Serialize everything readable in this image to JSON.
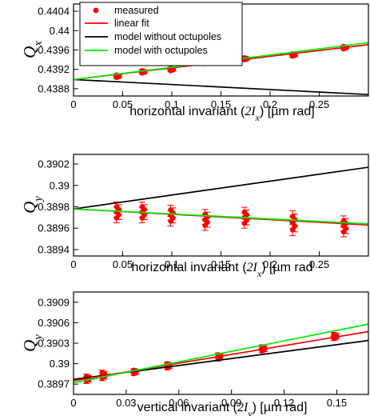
{
  "colors": {
    "measured": "#ff0000",
    "fit": "#ff0000",
    "no_oct": "#000000",
    "with_oct": "#00ee00"
  },
  "legend": {
    "measured": "measured",
    "fit": "linear fit",
    "no_oct": "model without octupoles",
    "with_oct": "model with octupoles"
  },
  "chart_data": [
    {
      "type": "scatter",
      "ylabel": "Qx",
      "xlabel": "horizontal invariant (2Ix) [µm rad]",
      "xlim": [
        0,
        0.3
      ],
      "ylim": [
        0.43865,
        0.44055
      ],
      "xticks": [
        0,
        0.05,
        0.1,
        0.15,
        0.2,
        0.25
      ],
      "xticklabels": [
        "0",
        "0.05",
        "0.1",
        "0.15",
        "0.2",
        "0.25"
      ],
      "yticks": [
        0.4388,
        0.4392,
        0.4396,
        0.44,
        0.4404
      ],
      "yticklabels": [
        "0.4388",
        "0.4392",
        "0.4396",
        "0.44",
        "0.4404"
      ],
      "measured": {
        "x": [
          0.045,
          0.071,
          0.1,
          0.135,
          0.175,
          0.224,
          0.276
        ],
        "y": [
          0.43906,
          0.43915,
          0.4392,
          0.43934,
          0.43942,
          0.4395,
          0.43965
        ],
        "err": [
          5e-05,
          5e-05,
          5e-05,
          4e-05,
          4e-05,
          5e-05,
          5e-05
        ]
      },
      "lines": [
        {
          "key": "fit",
          "x": [
            0,
            0.3
          ],
          "y": [
            0.43899,
            0.43971
          ]
        },
        {
          "key": "no_oct",
          "x": [
            0,
            0.3
          ],
          "y": [
            0.43899,
            0.43868
          ]
        },
        {
          "key": "with_oct",
          "x": [
            0,
            0.3
          ],
          "y": [
            0.43899,
            0.43975
          ]
        }
      ]
    },
    {
      "type": "scatter",
      "ylabel": "Qy",
      "xlabel": "horizontal invariant (2Ix) [µm rad",
      "xlim": [
        0,
        0.3
      ],
      "ylim": [
        0.38934,
        0.39029
      ],
      "xticks": [
        0,
        0.05,
        0.1,
        0.15,
        0.2,
        0.25
      ],
      "xticklabels": [
        "0",
        "0.05",
        "0.1",
        "0.15",
        "0.2",
        "0.25"
      ],
      "yticks": [
        0.3894,
        0.3896,
        0.3898,
        0.39,
        0.3902
      ],
      "yticklabels": [
        "0.3894",
        "0.3896",
        "0.3898",
        "0.39",
        "0.3902"
      ],
      "measured": {
        "x": [
          0.045,
          0.071,
          0.1,
          0.135,
          0.175,
          0.224,
          0.276
        ],
        "y": [
          0.38975,
          0.38975,
          0.38972,
          0.38968,
          0.3897,
          0.38965,
          0.38962
        ],
        "err": [
          0.0001,
          0.0001,
          0.0001,
          0.0001,
          0.0001,
          0.00012,
          0.0001
        ]
      },
      "lines": [
        {
          "key": "fit",
          "x": [
            0,
            0.3
          ],
          "y": [
            0.38978,
            0.38963
          ]
        },
        {
          "key": "no_oct",
          "x": [
            0,
            0.3
          ],
          "y": [
            0.38978,
            0.39017
          ]
        },
        {
          "key": "with_oct",
          "x": [
            0,
            0.3
          ],
          "y": [
            0.38978,
            0.38964
          ]
        }
      ]
    },
    {
      "type": "scatter",
      "ylabel": "Qy",
      "xlabel": "vertical invariant (2Iy) [µm rad]",
      "xlim": [
        0,
        0.168
      ],
      "ylim": [
        0.38955,
        0.39105
      ],
      "xticks": [
        0,
        0.03,
        0.06,
        0.09,
        0.12,
        0.15
      ],
      "xticklabels": [
        "0",
        "0.03",
        "0.06",
        "0.09",
        "0.12",
        "0.15"
      ],
      "yticks": [
        0.3897,
        0.39,
        0.3903,
        0.3906,
        0.3909
      ],
      "yticklabels": [
        "0.3897",
        "0.39",
        "0.3903",
        "0.3906",
        "0.3909"
      ],
      "measured": {
        "x": [
          0.008,
          0.017,
          0.035,
          0.054,
          0.083,
          0.108,
          0.149
        ],
        "y": [
          0.38978,
          0.38983,
          0.38988,
          0.38997,
          0.3901,
          0.39022,
          0.3904
        ],
        "err": [
          7e-05,
          8e-05,
          5e-05,
          6e-05,
          6e-05,
          6e-05,
          6e-05
        ]
      },
      "lines": [
        {
          "key": "fit",
          "x": [
            0,
            0.168
          ],
          "y": [
            0.38975,
            0.39047
          ]
        },
        {
          "key": "no_oct",
          "x": [
            0,
            0.168
          ],
          "y": [
            0.38977,
            0.39034
          ]
        },
        {
          "key": "with_oct",
          "x": [
            0,
            0.168
          ],
          "y": [
            0.38972,
            0.39058
          ]
        }
      ]
    }
  ]
}
